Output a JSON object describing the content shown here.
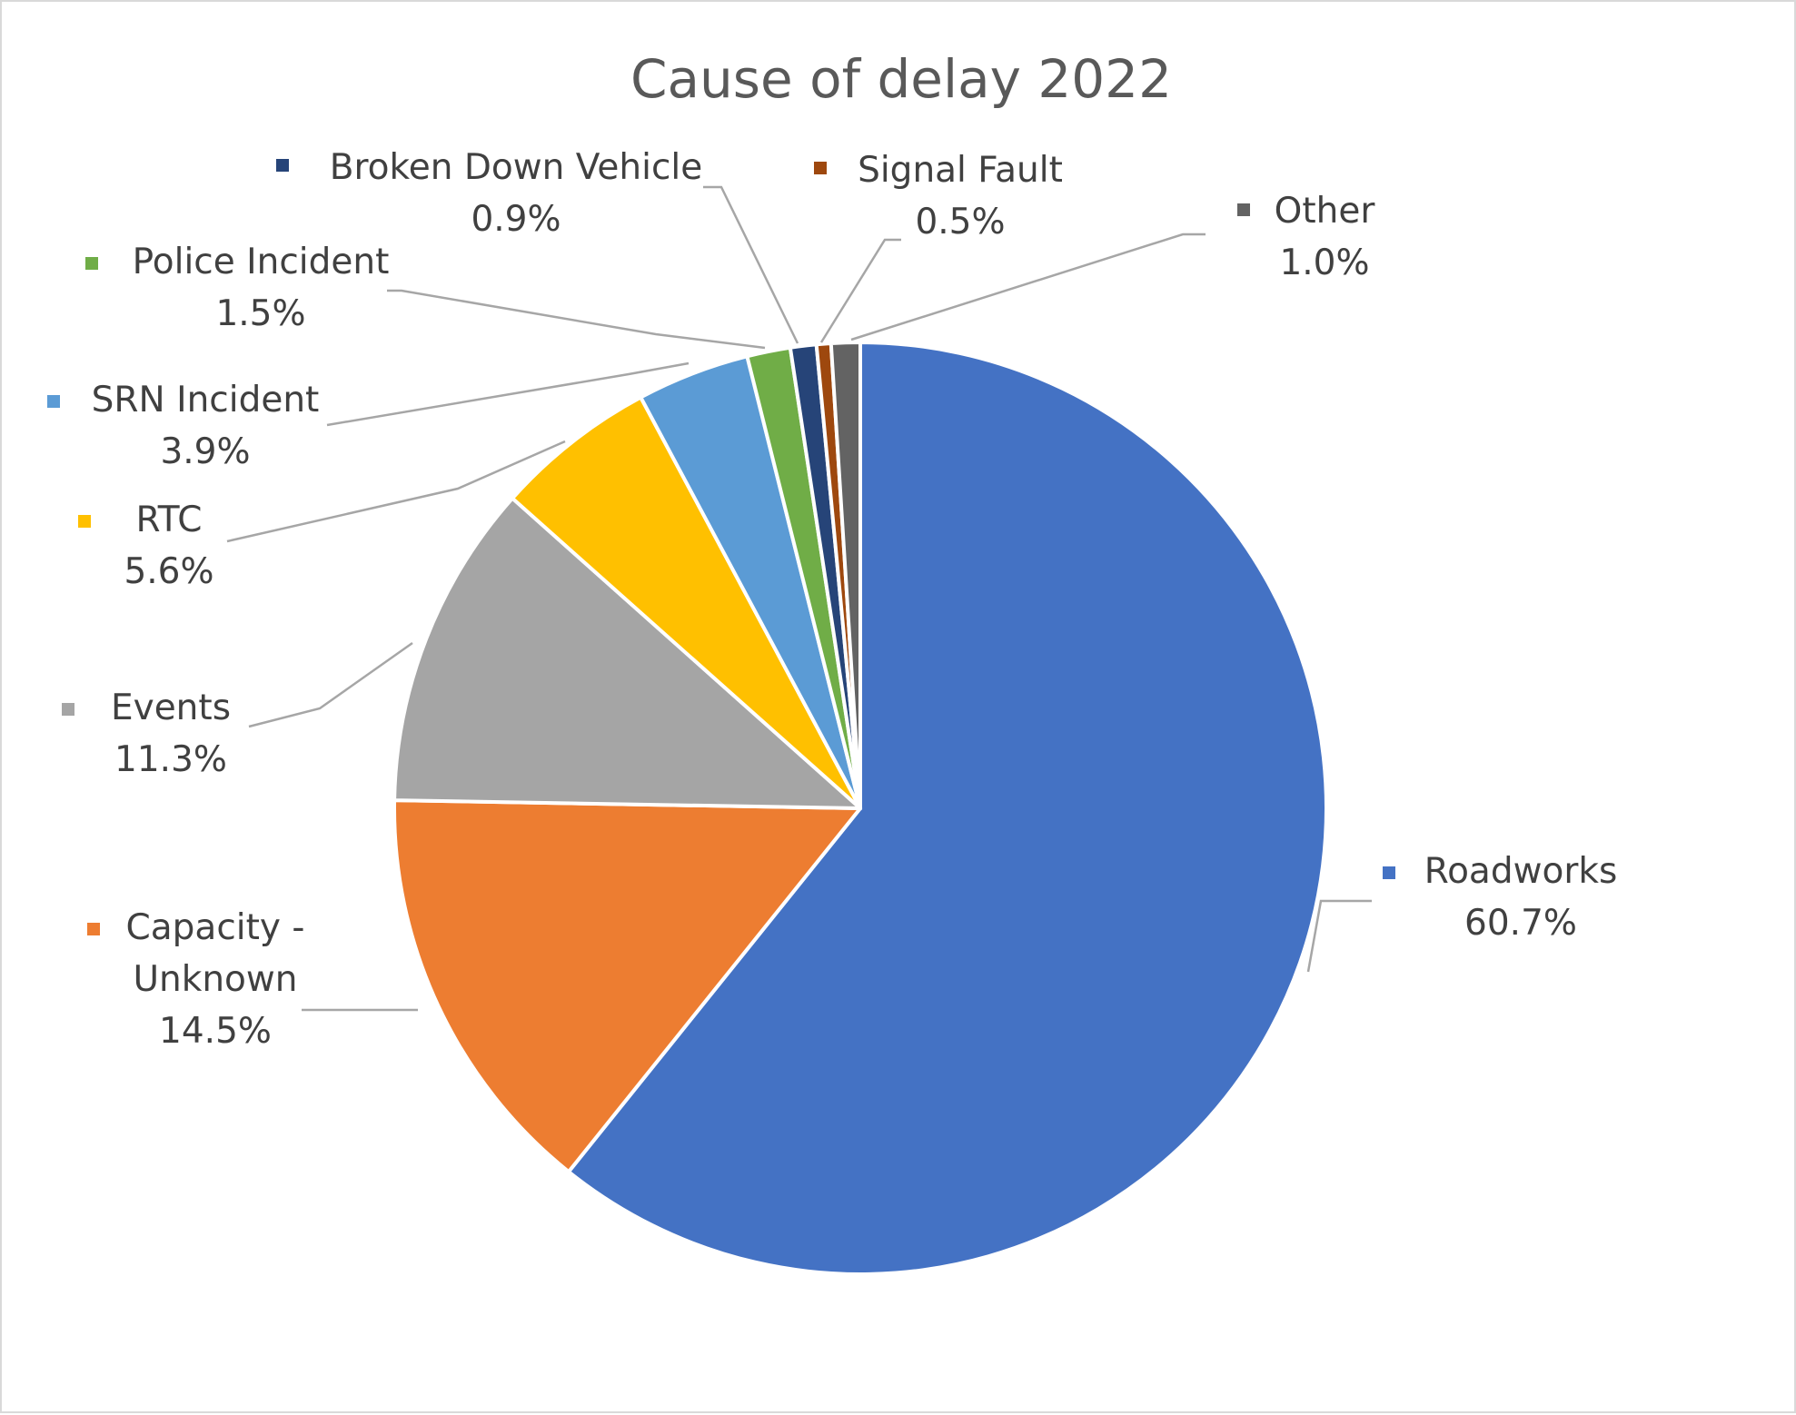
{
  "chart_data": {
    "type": "pie",
    "title": "Cause of delay 2022",
    "start": "12 o'clock, clockwise",
    "slices": [
      {
        "label": [
          "Roadworks"
        ],
        "value": 60.7,
        "value_label": "60.7%",
        "color": "#4472C4"
      },
      {
        "label": [
          "Capacity -",
          "Unknown"
        ],
        "value": 14.5,
        "value_label": "14.5%",
        "color": "#ED7D31"
      },
      {
        "label": [
          "Events"
        ],
        "value": 11.3,
        "value_label": "11.3%",
        "color": "#A5A5A5"
      },
      {
        "label": [
          "RTC"
        ],
        "value": 5.6,
        "value_label": "5.6%",
        "color": "#FFC000"
      },
      {
        "label": [
          "SRN Incident"
        ],
        "value": 3.9,
        "value_label": "3.9%",
        "color": "#5B9BD5"
      },
      {
        "label": [
          "Police Incident"
        ],
        "value": 1.5,
        "value_label": "1.5%",
        "color": "#70AD47"
      },
      {
        "label": [
          "Broken Down Vehicle"
        ],
        "value": 0.9,
        "value_label": "0.9%",
        "color": "#264478"
      },
      {
        "label": [
          "Signal Fault"
        ],
        "value": 0.5,
        "value_label": "0.5%",
        "color": "#9E480E"
      },
      {
        "label": [
          "Other"
        ],
        "value": 1.0,
        "value_label": "1.0%",
        "color": "#636363"
      }
    ]
  }
}
